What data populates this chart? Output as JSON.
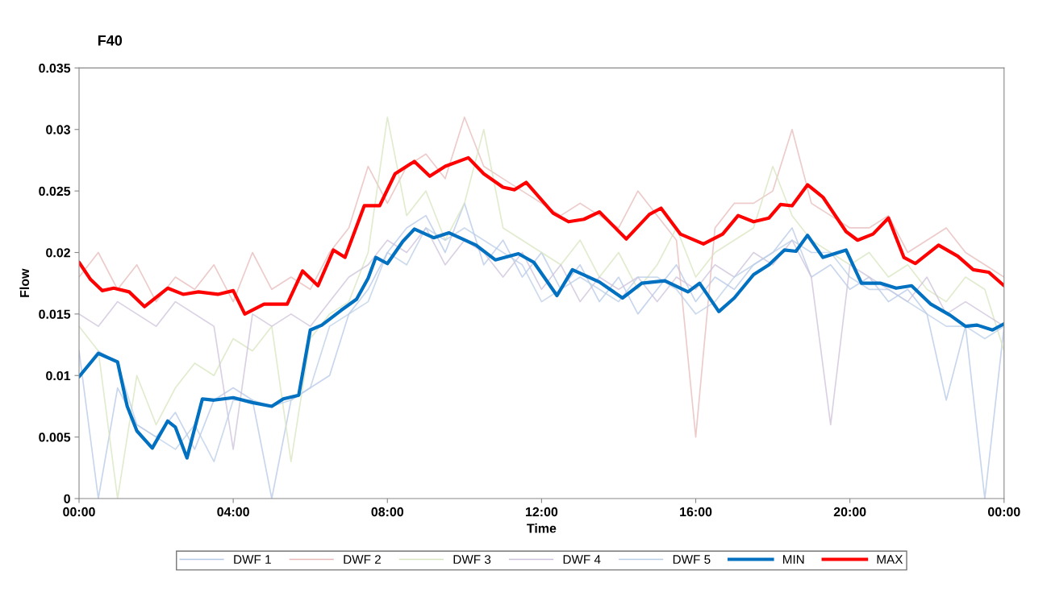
{
  "chart_data": {
    "type": "line",
    "title": "F40",
    "xlabel": "Time",
    "ylabel": "Flow",
    "x": [
      0,
      0.5,
      1,
      1.5,
      2,
      2.5,
      3,
      3.5,
      4,
      4.5,
      5,
      5.5,
      6,
      6.5,
      7,
      7.5,
      8,
      8.5,
      9,
      9.5,
      10,
      10.5,
      11,
      11.5,
      12,
      12.5,
      13,
      13.5,
      14,
      14.5,
      15,
      15.5,
      16,
      16.5,
      17,
      17.5,
      18,
      18.5,
      19,
      19.5,
      20,
      20.5,
      21,
      21.5,
      22,
      22.5,
      23,
      23.5,
      24
    ],
    "series": [
      {
        "name": "DWF 1",
        "color": "#b4c7e7",
        "values": [
          0.012,
          0.0,
          0.009,
          0.006,
          0.005,
          0.007,
          0.004,
          0.008,
          0.009,
          0.008,
          0.0,
          0.008,
          0.009,
          0.01,
          0.015,
          0.017,
          0.02,
          0.022,
          0.023,
          0.02,
          0.024,
          0.019,
          0.021,
          0.018,
          0.02,
          0.017,
          0.019,
          0.016,
          0.018,
          0.015,
          0.017,
          0.019,
          0.016,
          0.018,
          0.017,
          0.019,
          0.02,
          0.022,
          0.018,
          0.019,
          0.017,
          0.018,
          0.016,
          0.017,
          0.015,
          0.008,
          0.014,
          0.0,
          0.014
        ]
      },
      {
        "name": "DWF 2",
        "color": "#e6b9b8",
        "values": [
          0.018,
          0.02,
          0.017,
          0.019,
          0.016,
          0.018,
          0.017,
          0.019,
          0.016,
          0.02,
          0.017,
          0.018,
          0.017,
          0.02,
          0.022,
          0.027,
          0.024,
          0.027,
          0.028,
          0.026,
          0.031,
          0.027,
          0.026,
          0.025,
          0.024,
          0.023,
          0.024,
          0.023,
          0.022,
          0.025,
          0.023,
          0.021,
          0.005,
          0.022,
          0.024,
          0.024,
          0.025,
          0.03,
          0.024,
          0.023,
          0.022,
          0.022,
          0.023,
          0.02,
          0.021,
          0.022,
          0.02,
          0.019,
          0.018
        ]
      },
      {
        "name": "DWF 3",
        "color": "#d7e4bd",
        "values": [
          0.014,
          0.012,
          0.0,
          0.01,
          0.006,
          0.009,
          0.011,
          0.01,
          0.013,
          0.012,
          0.014,
          0.003,
          0.013,
          0.015,
          0.016,
          0.02,
          0.031,
          0.023,
          0.025,
          0.021,
          0.024,
          0.03,
          0.022,
          0.021,
          0.02,
          0.019,
          0.021,
          0.018,
          0.02,
          0.017,
          0.019,
          0.022,
          0.018,
          0.02,
          0.021,
          0.022,
          0.027,
          0.023,
          0.021,
          0.02,
          0.019,
          0.02,
          0.018,
          0.019,
          0.017,
          0.016,
          0.018,
          0.017,
          0.012
        ]
      },
      {
        "name": "DWF 4",
        "color": "#ccc1da",
        "values": [
          0.015,
          0.014,
          0.016,
          0.015,
          0.014,
          0.016,
          0.015,
          0.014,
          0.004,
          0.015,
          0.014,
          0.015,
          0.014,
          0.016,
          0.018,
          0.019,
          0.021,
          0.02,
          0.022,
          0.019,
          0.021,
          0.02,
          0.018,
          0.02,
          0.017,
          0.019,
          0.016,
          0.018,
          0.017,
          0.018,
          0.016,
          0.018,
          0.017,
          0.019,
          0.018,
          0.02,
          0.019,
          0.021,
          0.018,
          0.006,
          0.019,
          0.018,
          0.017,
          0.016,
          0.018,
          0.015,
          0.016,
          0.015,
          0.014
        ]
      },
      {
        "name": "DWF 5",
        "color": "#b9cde5",
        "values": [
          0.01,
          0.012,
          0.011,
          0.006,
          0.005,
          0.004,
          0.006,
          0.003,
          0.008,
          0.008,
          0.0075,
          0.008,
          0.009,
          0.014,
          0.015,
          0.016,
          0.02,
          0.019,
          0.022,
          0.021,
          0.022,
          0.021,
          0.02,
          0.019,
          0.016,
          0.017,
          0.018,
          0.017,
          0.016,
          0.018,
          0.018,
          0.017,
          0.015,
          0.016,
          0.018,
          0.019,
          0.02,
          0.021,
          0.02,
          0.02,
          0.018,
          0.017,
          0.017,
          0.016,
          0.015,
          0.014,
          0.014,
          0.013,
          0.014
        ]
      },
      {
        "name": "MIN",
        "color": "#0070c0",
        "x": [
          0,
          0.5,
          1,
          1.25,
          1.5,
          1.9,
          2.3,
          2.5,
          2.8,
          3.2,
          3.5,
          4,
          4.5,
          5,
          5.3,
          5.7,
          6,
          6.3,
          6.8,
          7.2,
          7.5,
          7.7,
          8,
          8.4,
          8.7,
          9.2,
          9.6,
          10.3,
          10.8,
          11.4,
          11.8,
          12.4,
          12.8,
          13.5,
          14.1,
          14.6,
          15.2,
          15.8,
          16.1,
          16.6,
          17,
          17.5,
          17.9,
          18.3,
          18.6,
          18.9,
          19.3,
          19.9,
          20.3,
          20.8,
          21.2,
          21.6,
          22.1,
          22.6,
          23,
          23.3,
          23.7,
          24
        ],
        "values": [
          0.0099,
          0.0118,
          0.0111,
          0.0075,
          0.0055,
          0.0041,
          0.0063,
          0.0058,
          0.0033,
          0.0081,
          0.008,
          0.0082,
          0.0078,
          0.0075,
          0.0081,
          0.0084,
          0.0137,
          0.0141,
          0.0153,
          0.0162,
          0.0179,
          0.0196,
          0.0191,
          0.0209,
          0.0219,
          0.0212,
          0.0216,
          0.0206,
          0.0194,
          0.0199,
          0.0192,
          0.0165,
          0.0186,
          0.0176,
          0.0163,
          0.0175,
          0.0177,
          0.0168,
          0.0175,
          0.0152,
          0.0163,
          0.0182,
          0.019,
          0.0202,
          0.0201,
          0.0214,
          0.0196,
          0.0202,
          0.0175,
          0.0175,
          0.0171,
          0.0173,
          0.0158,
          0.0149,
          0.014,
          0.0141,
          0.0137,
          0.0142
        ]
      },
      {
        "name": "MAX",
        "color": "#ff0000",
        "x": [
          0,
          0.3,
          0.6,
          0.9,
          1.3,
          1.7,
          2.3,
          2.7,
          3.1,
          3.6,
          4,
          4.3,
          4.8,
          5.4,
          5.8,
          6.2,
          6.6,
          6.9,
          7.4,
          7.8,
          8.2,
          8.7,
          9.1,
          9.5,
          10.1,
          10.5,
          11,
          11.3,
          11.6,
          12.3,
          12.7,
          13.1,
          13.5,
          14.2,
          14.8,
          15.1,
          15.6,
          16.2,
          16.7,
          17.1,
          17.5,
          17.9,
          18.2,
          18.5,
          18.9,
          19.3,
          19.9,
          20.2,
          20.6,
          21,
          21.4,
          21.7,
          22.3,
          22.8,
          23.2,
          23.6,
          24
        ],
        "values": [
          0.0192,
          0.0178,
          0.0169,
          0.0171,
          0.0168,
          0.0156,
          0.0171,
          0.0166,
          0.0168,
          0.0166,
          0.0169,
          0.015,
          0.0158,
          0.0158,
          0.0185,
          0.0173,
          0.0202,
          0.0196,
          0.0238,
          0.0238,
          0.0264,
          0.0274,
          0.0262,
          0.027,
          0.0277,
          0.0264,
          0.0253,
          0.0251,
          0.0257,
          0.0232,
          0.0225,
          0.0227,
          0.0233,
          0.0211,
          0.0231,
          0.0236,
          0.0215,
          0.0207,
          0.0215,
          0.023,
          0.0225,
          0.0228,
          0.0239,
          0.0238,
          0.0255,
          0.0245,
          0.0217,
          0.021,
          0.0215,
          0.0228,
          0.0196,
          0.0191,
          0.0206,
          0.0197,
          0.0186,
          0.0184,
          0.0173
        ]
      }
    ],
    "xlim": [
      0,
      24
    ],
    "xticks": [
      {
        "value": 0,
        "label": "00:00"
      },
      {
        "value": 4,
        "label": "04:00"
      },
      {
        "value": 8,
        "label": "08:00"
      },
      {
        "value": 12,
        "label": "12:00"
      },
      {
        "value": 16,
        "label": "16:00"
      },
      {
        "value": 20,
        "label": "20:00"
      },
      {
        "value": 24,
        "label": "00:00"
      }
    ],
    "ylim": [
      0,
      0.035
    ],
    "yticks": [
      0,
      0.005,
      0.01,
      0.015,
      0.02,
      0.025,
      0.03,
      0.035
    ],
    "grid": false,
    "legend": "bottom",
    "marker": "none",
    "line_style": "solid"
  }
}
